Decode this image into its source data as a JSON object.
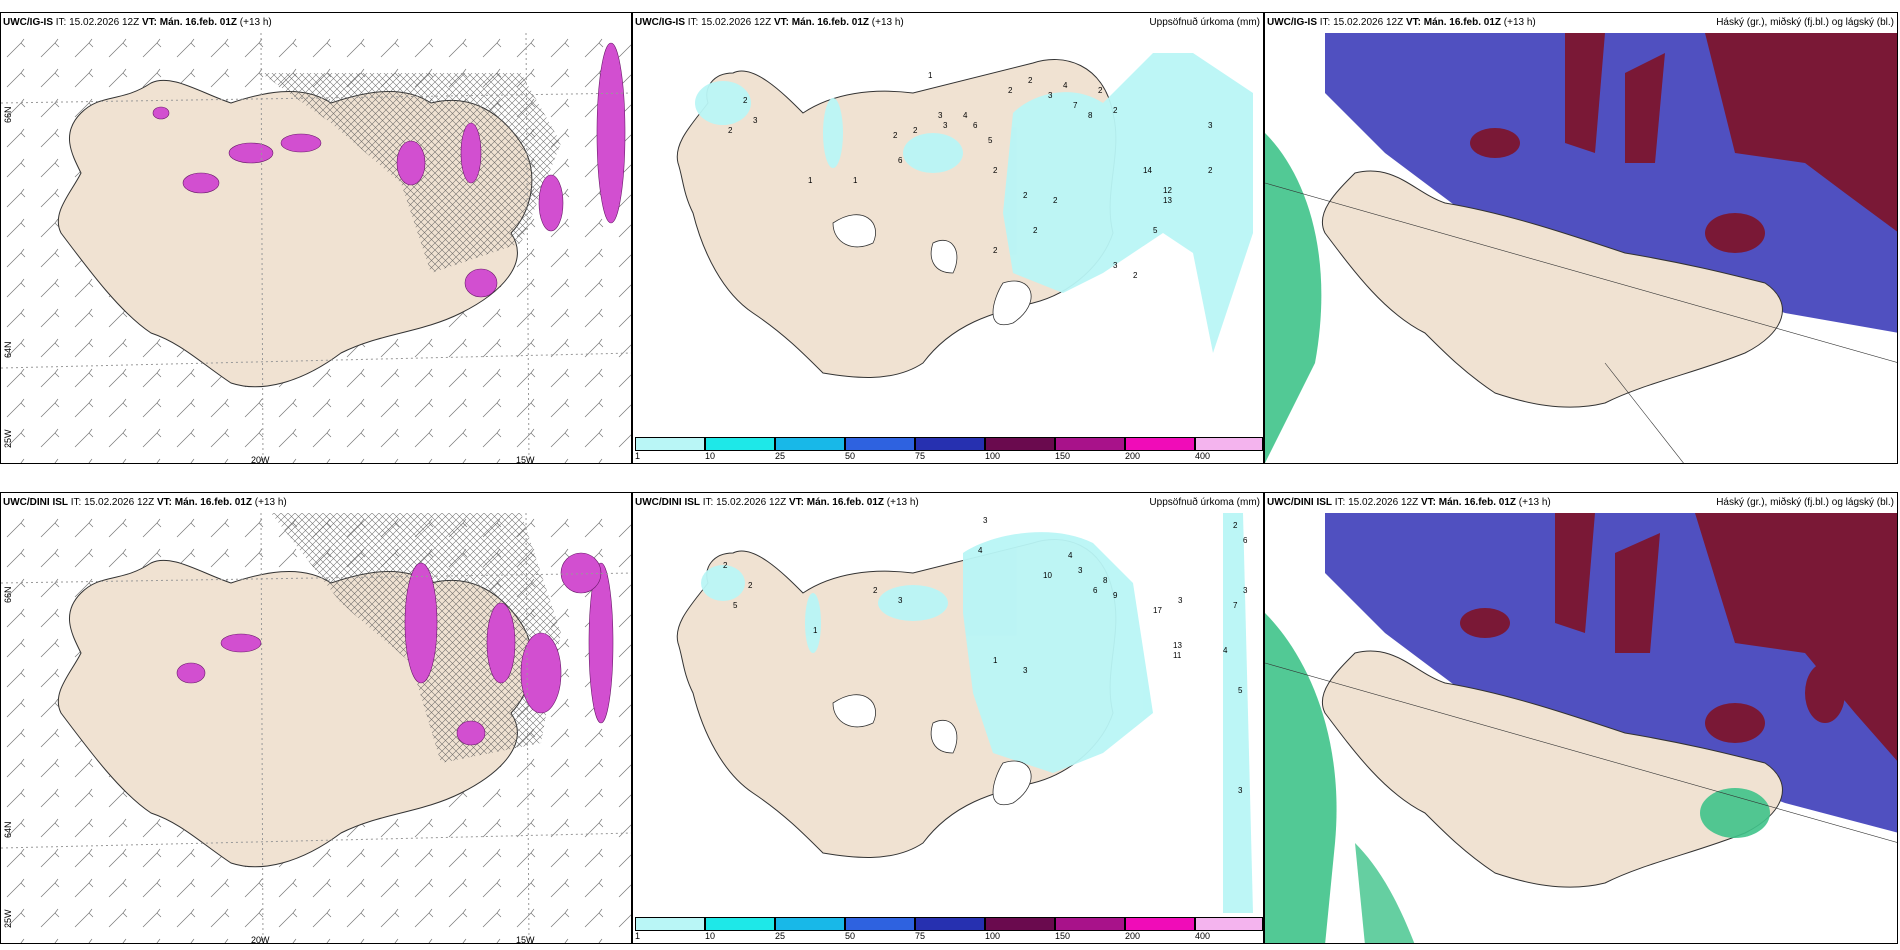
{
  "panels": [
    {
      "model": "UWC/IG-IS",
      "it": "IT: 15.02.2026 12Z",
      "vt": "VT: Mán. 16.feb. 01Z",
      "lead": "(+13 h)",
      "right_title": "",
      "lat_labels": [
        "66N",
        "64N"
      ],
      "lon_labels": [
        "25W",
        "20W",
        "15W"
      ]
    },
    {
      "model": "UWC/IG-IS",
      "it": "IT: 15.02.2026 12Z",
      "vt": "VT: Mán. 16.feb. 01Z",
      "lead": "(+13 h)",
      "right_title": "Uppsöfnuð úrkoma (mm)"
    },
    {
      "model": "UWC/IG-IS",
      "it": "IT: 15.02.2026 12Z",
      "vt": "VT: Mán. 16.feb. 01Z",
      "lead": "(+13 h)",
      "right_title": "Háský (gr.), miðský (fj.bl.) og lágský (bl.)"
    },
    {
      "model": "UWC/DINI ISL",
      "it": "IT: 15.02.2026 12Z",
      "vt": "VT: Mán. 16.feb. 01Z",
      "lead": "(+13 h)",
      "right_title": "",
      "lat_labels": [
        "66N",
        "64N"
      ],
      "lon_labels": [
        "25W",
        "20W",
        "15W"
      ]
    },
    {
      "model": "UWC/DINI ISL",
      "it": "IT: 15.02.2026 12Z",
      "vt": "VT: Mán. 16.feb. 01Z",
      "lead": "(+13 h)",
      "right_title": "Uppsöfnuð úrkoma (mm)"
    },
    {
      "model": "UWC/DINI ISL",
      "it": "IT: 15.02.2026 12Z",
      "vt": "VT: Mán. 16.feb. 01Z",
      "lead": "(+13 h)",
      "right_title": "Háský (gr.), miðský (fj.bl.) og lágský (bl.)"
    }
  ],
  "colorbar": {
    "levels": [
      "1",
      "10",
      "25",
      "50",
      "75",
      "100",
      "150",
      "200",
      "400"
    ],
    "colors": [
      "#b9f6f6",
      "#1ee8e8",
      "#18b8e8",
      "#2e62e0",
      "#2630b0",
      "#6a0a4e",
      "#a8128a",
      "#f00cb8",
      "#f4b4ee"
    ]
  },
  "precip_labels_top": [
    "1",
    "2",
    "3",
    "2",
    "3",
    "6",
    "1",
    "1",
    "2",
    "2",
    "3",
    "4",
    "5",
    "6",
    "2",
    "2",
    "3",
    "4",
    "7",
    "8",
    "2",
    "2",
    "14",
    "12",
    "13",
    "3",
    "2",
    "2",
    "2",
    "2",
    "2",
    "2",
    "3",
    "2",
    "5"
  ],
  "precip_labels_bottom": [
    "3",
    "4",
    "2",
    "2",
    "5",
    "1",
    "2",
    "3",
    "10",
    "4",
    "3",
    "6",
    "8",
    "9",
    "17",
    "3",
    "13",
    "11",
    "2",
    "6",
    "3",
    "7",
    "5",
    "4",
    "3",
    "1",
    "3"
  ],
  "colors": {
    "land": "#f0e2d2",
    "precip_light": "#b9f6f6",
    "wind_precip": "#d24fd0",
    "high_cloud": "#7a1836",
    "mid_cloud": "#5050c0",
    "low_cloud": "#3fc38a"
  }
}
